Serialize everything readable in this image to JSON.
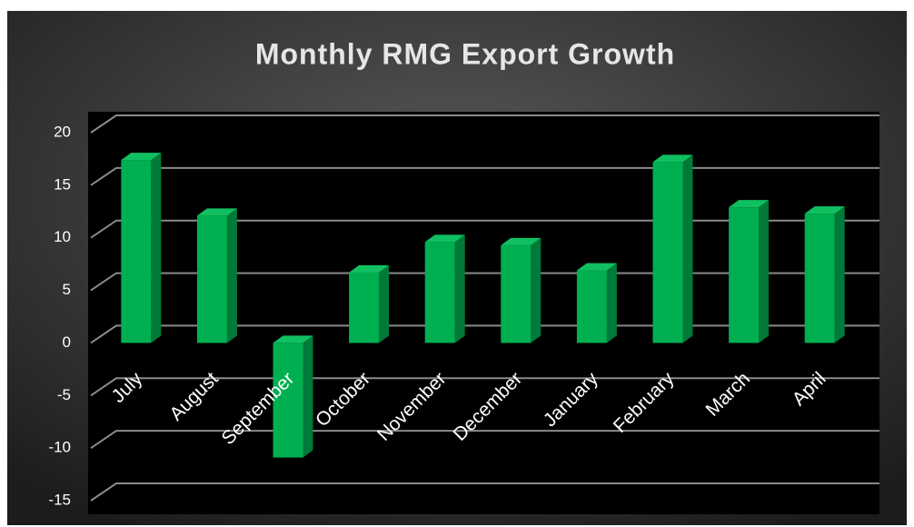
{
  "chart_data": {
    "type": "bar",
    "title": "Monthly RMG Export Growth",
    "categories": [
      "July",
      "August",
      "September",
      "October",
      "November",
      "December",
      "January",
      "February",
      "March",
      "April"
    ],
    "values": [
      17.4,
      12.1,
      -10.9,
      6.7,
      9.6,
      9.3,
      6.9,
      17.2,
      12.9,
      12.3
    ],
    "color": "#00b050",
    "ylim": [
      -15,
      20
    ],
    "yticks": [
      -15,
      -10,
      -5,
      0,
      5,
      10,
      15,
      20
    ],
    "grid": true
  }
}
